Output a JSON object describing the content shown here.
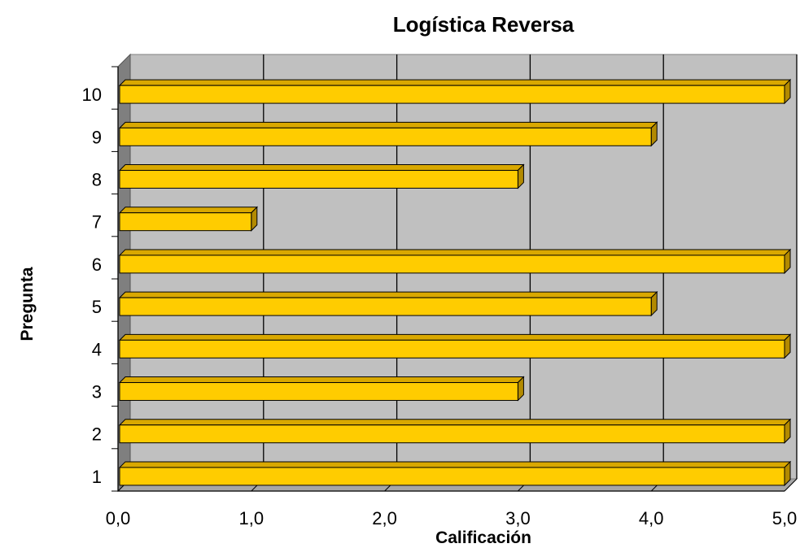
{
  "chart_data": {
    "type": "bar",
    "orientation": "horizontal",
    "title": "Logística Reversa",
    "xlabel": "Calificación",
    "ylabel": "Pregunta",
    "categories": [
      "1",
      "2",
      "3",
      "4",
      "5",
      "6",
      "7",
      "8",
      "9",
      "10"
    ],
    "values": [
      5,
      5,
      3,
      5,
      4,
      5,
      1,
      3,
      4,
      5
    ],
    "xlim": [
      0,
      5
    ],
    "x_ticks": [
      "0,0",
      "1,0",
      "2,0",
      "3,0",
      "4,0",
      "5,0"
    ],
    "grid": true,
    "legend": "none",
    "colors": {
      "bar_face": "#FFCC00",
      "bar_top": "#D9A800",
      "bar_side": "#B38A00",
      "plot_back": "#C0C0C0",
      "floor": "#7F7F7F"
    }
  }
}
